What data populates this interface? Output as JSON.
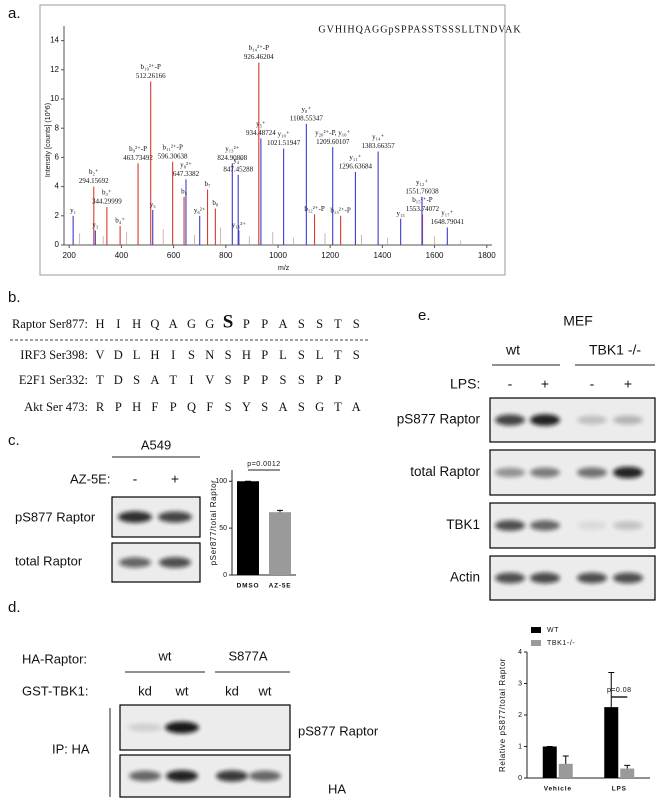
{
  "chart_data": [
    {
      "type": "stem",
      "label": "a.",
      "xlabel": "m/z",
      "ylabel": "Intensity [counts] (10^6)",
      "peptide": "GVHIHQAGGpSPPASSTSSSLLTNDVAK",
      "xlim": [
        180,
        1820
      ],
      "xticks": [
        200,
        400,
        600,
        800,
        1000,
        1200,
        1400,
        1600,
        1800
      ],
      "ylim": [
        0,
        15
      ],
      "yticks": [
        0,
        2,
        4,
        6,
        8,
        10,
        12,
        14
      ],
      "series": [
        {
          "color": "#d83a2e",
          "show_mz": true,
          "ions": [
            "b₂⁺",
            "b₃⁺",
            "b₉²⁺-P",
            "b₁₀²⁺-P",
            "b₁₁²⁺-P",
            "b₁₄²⁺-P",
            "b₁₅²⁺-P"
          ],
          "x": [
            294.15692,
            344.29999,
            463.73492,
            512.26166,
            596.30638,
            926.46204,
            1553.74072
          ],
          "values": [
            4.0,
            2.6,
            5.6,
            11.2,
            5.7,
            12.5,
            2.1
          ]
        },
        {
          "color": "#3a3ad0",
          "show_mz": true,
          "ions": [
            "y₈²⁺",
            "y₁₃²⁺",
            "y₄⁺",
            "y₅⁺",
            "y₁₀⁺",
            "y₈⁺",
            "y₂₀²⁺-P, y₁₀⁺",
            "y₁₁⁺",
            "y₁₄⁺",
            "y₁₂⁺",
            "y₁₇⁺"
          ],
          "x": [
            647.3382,
            824.90808,
            847.45288,
            934.48724,
            1021.51947,
            1108.55347,
            1209.60107,
            1296.63684,
            1383.66357,
            1551.76038,
            1648.79041
          ],
          "values": [
            4.5,
            5.6,
            4.8,
            7.3,
            6.6,
            8.3,
            6.7,
            5.0,
            6.4,
            3.3,
            1.2
          ]
        },
        {
          "color": "#d83a2e",
          "show_mz": false,
          "ions": [
            "b₄⁺",
            "b₅",
            "b₇",
            "b₈",
            "b₁₂²⁺-P",
            "b₁₃²⁺-P"
          ],
          "x": [
            395,
            640,
            730,
            760,
            1140,
            1240
          ],
          "values": [
            1.3,
            3.3,
            3.8,
            2.5,
            2.1,
            2.0
          ]
        },
        {
          "color": "#3a3ad0",
          "show_mz": false,
          "ions": [
            "y₁",
            "y₃",
            "y₅",
            "y₆²⁺",
            "y₁₆²⁺",
            "y₁₅"
          ],
          "x": [
            215,
            300,
            520,
            700,
            850,
            1470
          ],
          "values": [
            2.0,
            1.0,
            2.4,
            2.0,
            1.0,
            1.8
          ]
        },
        {
          "color": "#c9a0a0",
          "show_mz": false,
          "x": [
            240,
            330,
            420,
            560,
            680,
            780,
            890,
            980,
            1060,
            1180,
            1320,
            1420,
            1600,
            1700
          ],
          "values": [
            0.8,
            0.6,
            0.9,
            1.1,
            0.7,
            1.2,
            0.6,
            0.9,
            0.5,
            0.8,
            0.7,
            0.5,
            0.6,
            0.3
          ]
        }
      ]
    },
    {
      "type": "bar",
      "ylabel": "pSer877/total Raptor",
      "annotation": "p=0.0012",
      "categories": [
        "DMSO",
        "AZ-5E"
      ],
      "values": [
        100,
        67
      ],
      "errors": [
        0,
        2
      ],
      "colors": [
        "#000000",
        "#9a9a9a"
      ],
      "ylim": [
        0,
        112
      ],
      "yticks": [
        0,
        50,
        100
      ]
    },
    {
      "type": "bar",
      "ylabel": "Relative pS877/total Raptor",
      "annotation": "p=0.08",
      "categories": [
        "Vehicle",
        "LPS"
      ],
      "series": [
        {
          "name": "WT",
          "color": "#000000",
          "values": [
            1.0,
            2.25
          ],
          "errors": [
            0,
            1.1
          ]
        },
        {
          "name": "TBK1-/-",
          "color": "#9a9a9a",
          "values": [
            0.45,
            0.3
          ],
          "errors": [
            0.25,
            0.1
          ]
        }
      ],
      "ylim": [
        0,
        4
      ],
      "yticks": [
        0,
        1,
        2,
        3,
        4
      ]
    }
  ],
  "panel_b": {
    "label": "b.",
    "highlight_color": "#d83a2e",
    "rows": [
      {
        "name": "Raptor Ser877:",
        "residues": [
          "H",
          "I",
          "H",
          "Q",
          "A",
          "G",
          "G",
          "S",
          "P",
          "P",
          "A",
          "S",
          "S",
          "T",
          "S"
        ],
        "emphasis": 7
      },
      {
        "name": "IRF3 Ser398:",
        "residues": [
          "V",
          "D",
          "L",
          "H",
          "I",
          "S",
          "N",
          "S",
          "H",
          "P",
          "L",
          "S",
          "L",
          "T",
          "S"
        ],
        "highlight": [
          9,
          11,
          14
        ]
      },
      {
        "name": "E2F1 Ser332:",
        "residues": [
          "T",
          "D",
          "S",
          "A",
          "T",
          "I",
          "V",
          "S",
          "P",
          "P",
          "S",
          "S",
          "P",
          "P"
        ],
        "highlight": [
          8,
          9,
          10,
          11
        ]
      },
      {
        "name": "Akt Ser 473:",
        "residues": [
          "R",
          "P",
          "H",
          "F",
          "P",
          "Q",
          "F",
          "S",
          "Y",
          "S",
          "A",
          "S",
          "G",
          "T",
          "A"
        ],
        "highlight": [
          2,
          10,
          13
        ]
      }
    ]
  },
  "panel_c": {
    "label": "c.",
    "cell_line": "A549",
    "treatment": "AZ-5E:",
    "lanes": [
      "-",
      "+"
    ],
    "blots": [
      "pS877 Raptor",
      "total Raptor"
    ]
  },
  "panel_d": {
    "label": "d.",
    "construct": "HA-Raptor:",
    "groups": [
      "wt",
      "S877A"
    ],
    "kinase": "GST-TBK1:",
    "lanes": [
      "kd",
      "wt",
      "kd",
      "wt"
    ],
    "ip": "IP: HA",
    "blots": [
      "pS877 Raptor",
      "HA"
    ]
  },
  "panel_e": {
    "label": "e.",
    "cell_line": "MEF",
    "groups": [
      "wt",
      "TBK1 -/-"
    ],
    "treatment": "LPS:",
    "lanes": [
      "-",
      "+",
      "-",
      "+"
    ],
    "blots": [
      "pS877 Raptor",
      "total Raptor",
      "TBK1",
      "Actin"
    ]
  }
}
